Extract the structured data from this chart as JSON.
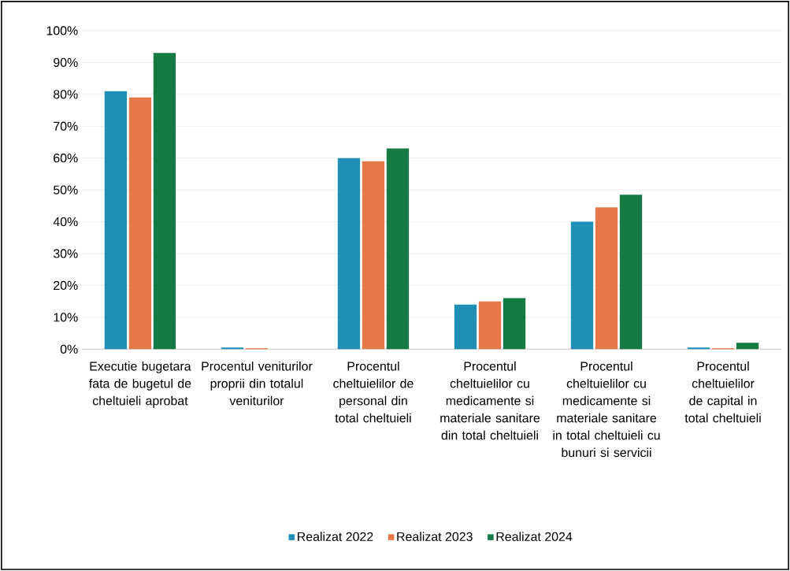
{
  "chart_data": {
    "type": "bar",
    "categories": [
      "Executie bugetara fata de bugetul de cheltuieli aprobat",
      "Procentul veniturilor proprii din totalul veniturilor",
      "Procentul cheltuielilor de personal din total cheltuieli",
      "Procentul cheltuielilor cu medicamente si materiale sanitare din total cheltuieli",
      "Procentul cheltuielilor cu medicamente si materiale sanitare in total cheltuieli cu bunuri si servicii",
      "Procentul cheltuielilor de capital in total cheltuieli"
    ],
    "series": [
      {
        "name": "Realizat 2022",
        "color": "#1f8fb5",
        "values": [
          81,
          0.5,
          60,
          14,
          40,
          0.5
        ]
      },
      {
        "name": "Realizat 2023",
        "color": "#e8784a",
        "values": [
          79,
          0.3,
          59,
          15,
          44.5,
          0.3
        ]
      },
      {
        "name": "Realizat 2024",
        "color": "#167a45",
        "values": [
          93,
          0,
          63,
          16,
          48.5,
          2
        ]
      }
    ],
    "ylim": [
      0,
      100
    ],
    "yticks": [
      {
        "value": 0,
        "label": "0%"
      },
      {
        "value": 10,
        "label": "10%"
      },
      {
        "value": 20,
        "label": "20%"
      },
      {
        "value": 30,
        "label": "30%"
      },
      {
        "value": 40,
        "label": "40%"
      },
      {
        "value": 50,
        "label": "50%"
      },
      {
        "value": 60,
        "label": "60%"
      },
      {
        "value": 70,
        "label": "70%"
      },
      {
        "value": 80,
        "label": "80%"
      },
      {
        "value": 90,
        "label": "90%"
      },
      {
        "value": 100,
        "label": "100%"
      }
    ],
    "grid": "y",
    "legend": "bottom"
  }
}
